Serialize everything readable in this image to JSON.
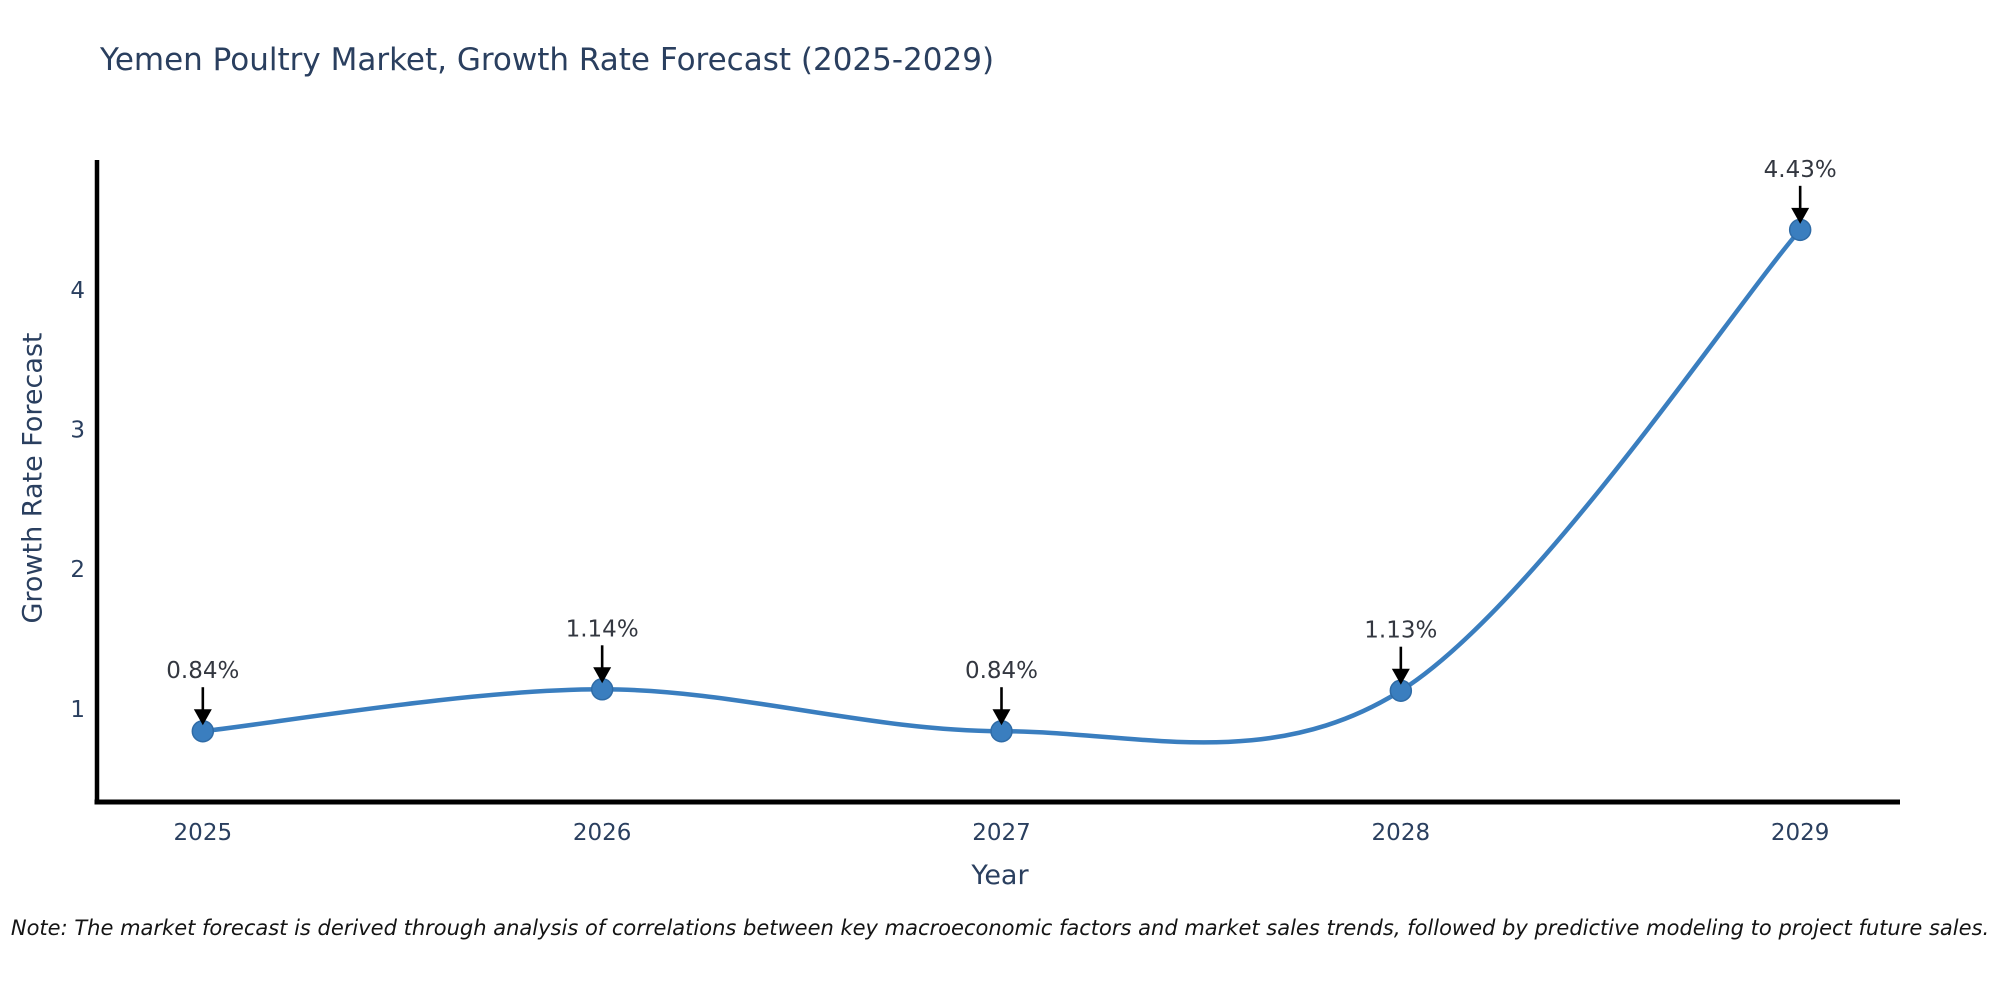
{
  "title": "Yemen Poultry Market, Growth Rate Forecast (2025-2029)",
  "note": "Note: The market forecast is derived through analysis of correlations between key macroeconomic factors and market sales trends, followed by predictive modeling to project future sales.",
  "chart_data": {
    "type": "line",
    "title": "Yemen Poultry Market, Growth Rate Forecast (2025-2029)",
    "xlabel": "Year",
    "ylabel": "Growth Rate Forecast",
    "x": [
      2025,
      2026,
      2027,
      2028,
      2029
    ],
    "y": [
      0.84,
      1.14,
      0.84,
      1.13,
      4.43
    ],
    "point_labels": [
      "0.84%",
      "1.14%",
      "0.84%",
      "1.13%",
      "4.43%"
    ],
    "yticks": [
      1,
      2,
      3,
      4
    ],
    "xlim": [
      2024.735,
      2029.25
    ],
    "ylim": [
      0.333,
      4.93
    ],
    "line_shape": "spline",
    "grid": false,
    "legend": "none",
    "colors": {
      "line": "#3a7ebf",
      "marker_fill": "#3a7ebf",
      "marker_edge": "#2f6ba6",
      "arrow": "#000000",
      "annotation_text": "#333740",
      "axis": "#000000",
      "tick_text": "#2a3f5f",
      "title_text": "#2a3f5f"
    }
  }
}
